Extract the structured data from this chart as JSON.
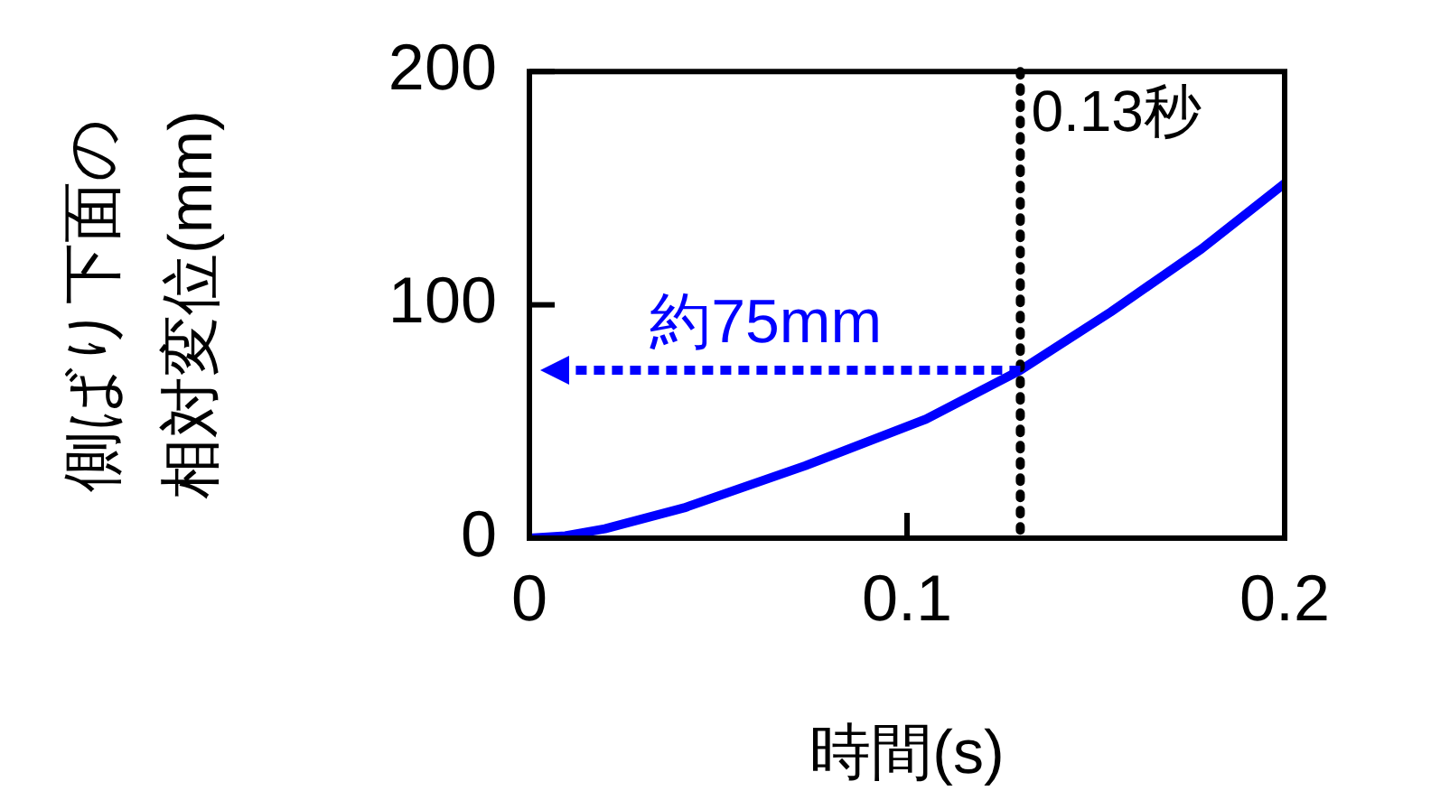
{
  "chart_data": {
    "type": "line",
    "xlabel": "時間(s)",
    "ylabel": "側ばり下面の相対変位(mm)",
    "x": [
      0,
      0.0095,
      0.02,
      0.041,
      0.073,
      0.105,
      0.13,
      0.154,
      0.178,
      0.2
    ],
    "series": [
      {
        "color": "#0000ff",
        "values": [
          0,
          1,
          4,
          13,
          31,
          51,
          72,
          97,
          124,
          152
        ]
      }
    ],
    "xlim": [
      0,
      0.2
    ],
    "xticks": [
      0,
      0.1,
      0.2
    ],
    "ylim": [
      0,
      200
    ],
    "yticks": [
      0,
      100,
      200
    ],
    "grid": false,
    "legend": false,
    "marker": "none",
    "line_style": "solid",
    "ref_lines": [
      {
        "axis": "x",
        "value": 0.13,
        "label": "0.13秒",
        "color": "#000000",
        "line_style": "dotted"
      }
    ],
    "annotations": [
      {
        "text": "約75mm",
        "x": 0.13,
        "y": 72
      }
    ]
  }
}
